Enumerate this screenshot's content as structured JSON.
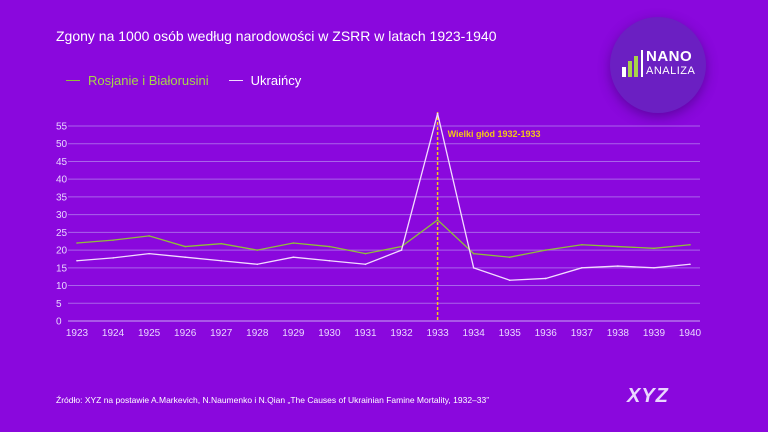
{
  "chart_data": {
    "type": "line",
    "title": "Zgony na 1000 osób według narodowości w ZSRR w latach 1923-1940",
    "xlabel": "",
    "ylabel": "",
    "x": [
      1923,
      1924,
      1925,
      1926,
      1927,
      1928,
      1929,
      1930,
      1931,
      1932,
      1933,
      1934,
      1935,
      1936,
      1937,
      1938,
      1939,
      1940
    ],
    "ylim": [
      0,
      58
    ],
    "yticks": [
      0,
      5,
      10,
      15,
      20,
      25,
      30,
      35,
      40,
      45,
      50,
      55
    ],
    "grid": true,
    "legend_placement": "top-left",
    "series": [
      {
        "name": "Rosjanie  i Białorusini",
        "color": "#8fbf3a",
        "values": [
          22,
          22.8,
          24,
          21,
          21.8,
          20,
          22,
          21,
          19,
          21,
          28.5,
          19,
          18,
          20,
          21.5,
          21,
          20.5,
          21.5
        ]
      },
      {
        "name": "Ukraińcy",
        "color": "#f3dcff",
        "values": [
          17,
          17.8,
          19,
          18,
          17,
          16,
          18,
          17,
          16,
          20,
          58.5,
          15,
          11.5,
          12,
          15,
          15.5,
          15,
          16
        ]
      }
    ],
    "annotation": {
      "x": 1933,
      "label": "Wielki głód 1932-1933",
      "color": "#f5c518"
    }
  },
  "logo": {
    "line1": "NANO",
    "line2": "ANALIZA"
  },
  "source": "Źródło: XYZ na postawie A.Markevich, N.Naumenko i N.Qian „The Causes of Ukrainian Famine Mortality, 1932–33”",
  "brand": "XYZ"
}
